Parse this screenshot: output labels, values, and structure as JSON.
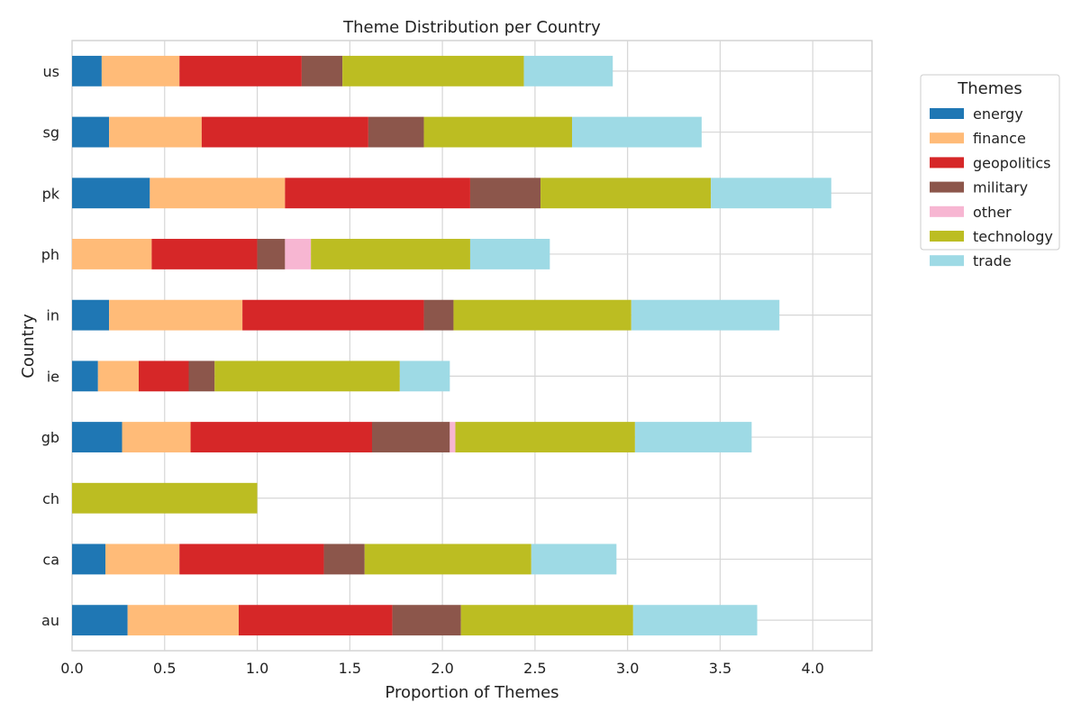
{
  "chart_data": {
    "type": "bar",
    "orientation": "horizontal",
    "stacked": true,
    "title": "Theme Distribution per Country",
    "xlabel": "Proportion of Themes",
    "ylabel": "Country",
    "xlim": [
      0,
      4.32
    ],
    "xticks": [
      "0.0",
      "0.5",
      "1.0",
      "1.5",
      "2.0",
      "2.5",
      "3.0",
      "3.5",
      "4.0"
    ],
    "grid": true,
    "legend_title": "Themes",
    "legend_position": "outside-top-right",
    "categories": [
      "au",
      "ca",
      "ch",
      "gb",
      "ie",
      "in",
      "ph",
      "pk",
      "sg",
      "us"
    ],
    "series": [
      {
        "name": "energy",
        "color": "#1f77b4",
        "values": [
          0.3,
          0.18,
          0.0,
          0.27,
          0.14,
          0.2,
          0.0,
          0.42,
          0.2,
          0.16
        ]
      },
      {
        "name": "finance",
        "color": "#ffbb78",
        "values": [
          0.6,
          0.4,
          0.0,
          0.37,
          0.22,
          0.72,
          0.43,
          0.73,
          0.5,
          0.42
        ]
      },
      {
        "name": "geopolitics",
        "color": "#d62728",
        "values": [
          0.83,
          0.78,
          0.0,
          0.98,
          0.27,
          0.98,
          0.57,
          1.0,
          0.9,
          0.66
        ]
      },
      {
        "name": "military",
        "color": "#8c564b",
        "values": [
          0.37,
          0.22,
          0.0,
          0.42,
          0.14,
          0.16,
          0.15,
          0.38,
          0.3,
          0.22
        ]
      },
      {
        "name": "other",
        "color": "#f7b6d2",
        "values": [
          0.0,
          0.0,
          0.0,
          0.03,
          0.0,
          0.0,
          0.14,
          0.0,
          0.0,
          0.0
        ]
      },
      {
        "name": "technology",
        "color": "#bcbd22",
        "values": [
          0.93,
          0.9,
          1.0,
          0.97,
          1.0,
          0.96,
          0.86,
          0.92,
          0.8,
          0.98
        ]
      },
      {
        "name": "trade",
        "color": "#9edae5",
        "values": [
          0.67,
          0.46,
          0.0,
          0.63,
          0.27,
          0.8,
          0.43,
          0.65,
          0.7,
          0.48
        ]
      }
    ]
  }
}
